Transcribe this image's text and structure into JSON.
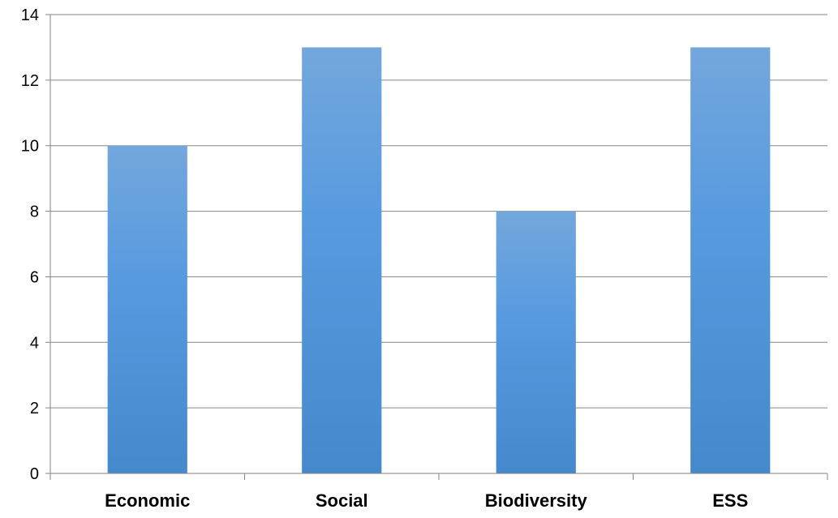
{
  "chart_data": {
    "type": "bar",
    "categories": [
      "Economic",
      "Social",
      "Biodiversity",
      "ESS"
    ],
    "values": [
      10,
      13,
      8,
      13
    ],
    "title": "",
    "xlabel": "",
    "ylabel": "",
    "ylim": [
      0,
      14
    ],
    "yticks": [
      "0",
      "2",
      "4",
      "6",
      "8",
      "10",
      "12",
      "14"
    ],
    "grid": true,
    "legend": "none",
    "colors": {
      "bar_top": "#73A7DC",
      "bar_mid": "#589ADF",
      "bar_bottom": "#4589CC",
      "gridline": "#868686",
      "axis": "#868686"
    }
  }
}
